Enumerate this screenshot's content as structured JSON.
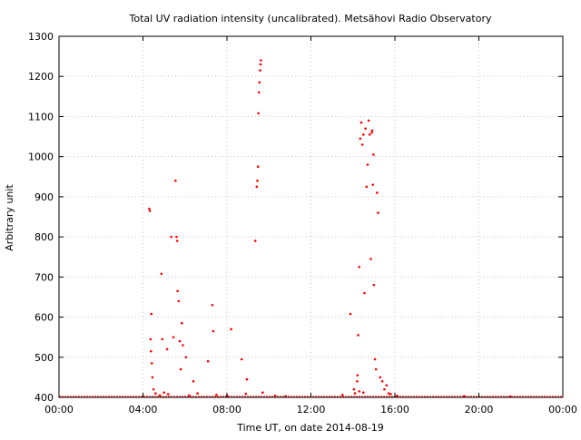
{
  "chart_data": {
    "type": "scatter",
    "title": "Total UV radiation intensity (uncalibrated). Metsähovi Radio Observatory",
    "xlabel": "Time UT, on date 2014-08-19",
    "ylabel": "Arbitrary unit",
    "xlim": [
      0,
      24
    ],
    "ylim": [
      400,
      1300
    ],
    "x_ticks": [
      0,
      4,
      8,
      12,
      16,
      20,
      24
    ],
    "x_tick_labels": [
      "00:00",
      "04:00",
      "08:00",
      "12:00",
      "16:00",
      "20:00",
      "00:00"
    ],
    "y_ticks": [
      400,
      500,
      600,
      700,
      800,
      900,
      1000,
      1100,
      1200,
      1300
    ],
    "grid": true,
    "marker_color": "#ff0000",
    "baseline": {
      "value": 400,
      "x_from": 0,
      "x_to": 24
    },
    "series": [
      {
        "x": [
          4.3,
          4.33,
          4.36,
          4.38,
          4.4,
          4.42,
          4.45,
          4.5,
          4.88,
          4.92,
          5.15,
          5.35,
          5.45,
          5.55,
          5.6,
          5.63,
          5.65,
          5.7,
          5.75,
          5.8,
          5.85,
          5.9,
          6.05,
          6.4,
          7.1,
          7.3,
          7.35,
          8.2,
          8.7,
          8.95,
          9.35,
          9.42,
          9.45,
          9.48,
          9.5,
          9.52,
          9.55,
          9.58,
          9.6,
          9.62,
          13.88,
          14.05,
          14.2,
          14.22,
          14.25,
          14.3,
          14.35,
          14.4,
          14.45,
          14.5,
          14.55,
          14.6,
          14.65,
          14.7,
          14.75,
          14.8,
          14.85,
          14.9,
          14.92,
          14.95,
          14.98,
          15.0,
          15.05,
          15.1,
          15.15,
          15.2,
          15.3,
          15.4,
          15.5,
          15.6,
          15.7,
          4.6,
          4.8,
          5.0,
          5.2,
          6.2,
          6.6,
          7.5,
          8.0,
          8.9,
          9.7,
          10.3,
          10.8,
          13.5,
          14.1,
          14.3,
          14.5,
          15.8,
          16.1,
          19.3,
          21.5
        ],
        "y": [
          870,
          865,
          545,
          515,
          608,
          485,
          450,
          420,
          708,
          545,
          520,
          800,
          550,
          940,
          800,
          790,
          665,
          640,
          540,
          470,
          585,
          530,
          500,
          440,
          490,
          630,
          565,
          570,
          495,
          445,
          790,
          925,
          940,
          975,
          1108,
          1160,
          1185,
          1215,
          1230,
          1240,
          608,
          420,
          440,
          455,
          555,
          725,
          1045,
          1085,
          1030,
          1055,
          660,
          1070,
          925,
          980,
          1090,
          1055,
          745,
          1060,
          1065,
          930,
          1005,
          680,
          495,
          470,
          910,
          860,
          450,
          440,
          420,
          430,
          410,
          410,
          405,
          412,
          408,
          405,
          410,
          406,
          404,
          409,
          412,
          404,
          403,
          406,
          410,
          415,
          412,
          408,
          404,
          403,
          402
        ]
      }
    ]
  }
}
